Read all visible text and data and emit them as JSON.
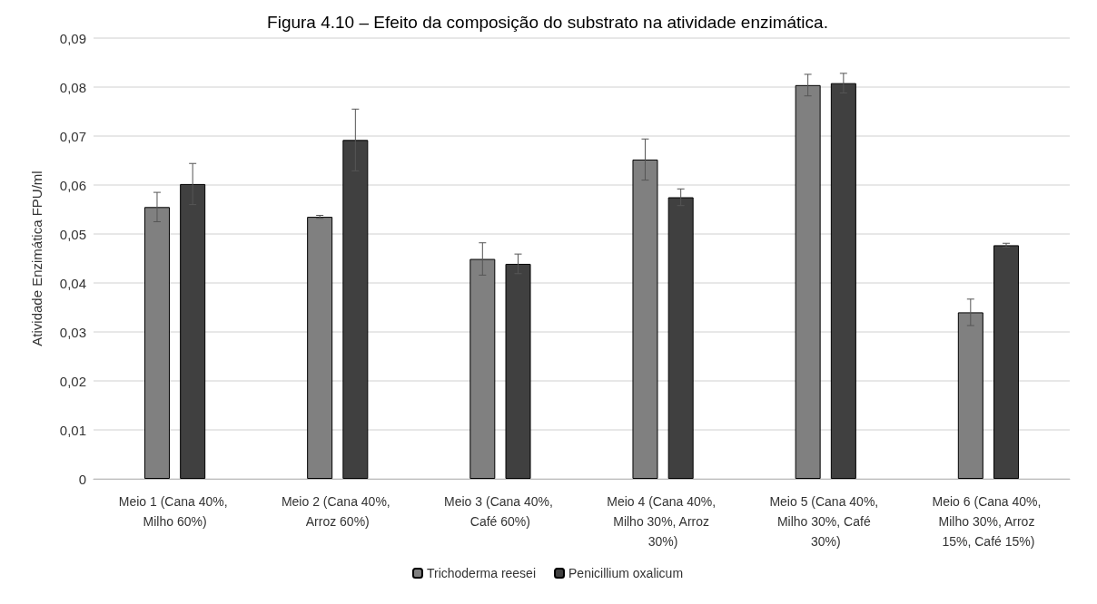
{
  "chart_data": {
    "type": "bar",
    "title": "Figura 4.10 – Efeito da composição do substrato na atividade enzimática.",
    "ylabel": "Atividade Enzimática FPU/ml",
    "categories": [
      "Meio 1 (Cana 40%, Milho 60%)",
      "Meio 2 (Cana 40%, Arroz 60%)",
      "Meio 3 (Cana 40%, Café 60%)",
      "Meio 4 (Cana 40%, Milho 30%, Arroz 30%)",
      "Meio 5 (Cana 40%, Milho 30%, Café 30%)",
      "Meio 6 (Cana 40%, Milho 30%, Arroz 15%, Café 15%)"
    ],
    "series": [
      {
        "name": "Trichoderma reesei",
        "color": "#808080",
        "values": [
          0.0555,
          0.0535,
          0.0449,
          0.0652,
          0.0804,
          0.034
        ],
        "errors": [
          0.003,
          0.0003,
          0.0033,
          0.0042,
          0.0022,
          0.0027
        ]
      },
      {
        "name": "Penicillium oxalicum",
        "color": "#404040",
        "values": [
          0.0602,
          0.0692,
          0.0439,
          0.0575,
          0.0808,
          0.0477
        ],
        "errors": [
          0.0042,
          0.0063,
          0.002,
          0.0017,
          0.002,
          0.0004
        ]
      }
    ],
    "ylim": [
      0,
      0.09
    ],
    "yticks": [
      0,
      {
        "value": 0.01,
        "label": "0,01"
      },
      {
        "value": 0.02,
        "label": "0,02"
      },
      {
        "value": 0.03,
        "label": "0,03"
      },
      {
        "value": 0.04,
        "label": "0,04"
      },
      {
        "value": 0.05,
        "label": "0,05"
      },
      {
        "value": 0.06,
        "label": "0,06"
      },
      {
        "value": 0.07,
        "label": "0,07"
      },
      {
        "value": 0.08,
        "label": "0,08"
      },
      {
        "value": 0.09,
        "label": "0,09"
      }
    ],
    "grid": "y",
    "legend": "bottom"
  }
}
